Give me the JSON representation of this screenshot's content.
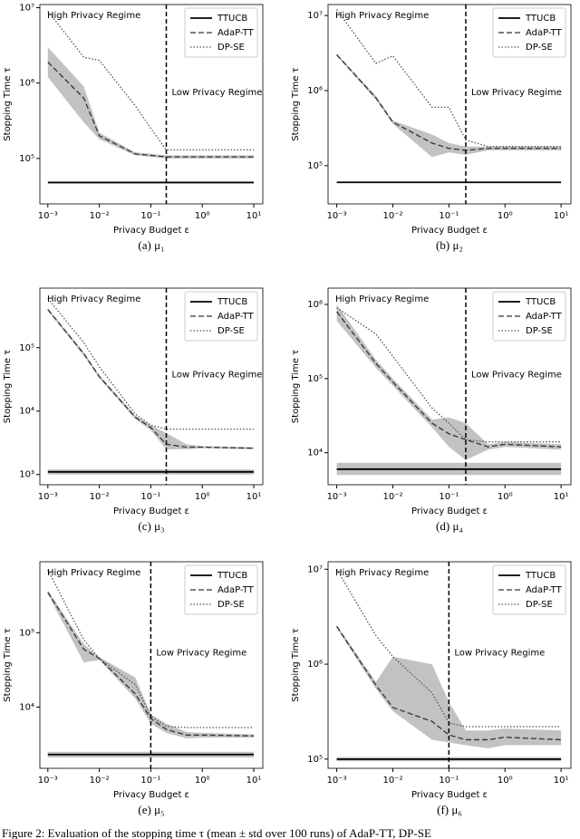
{
  "figure_caption": "Figure 2: Evaluation of the stopping time τ (mean ± std over 100 runs) of AdaP-TT, DP-SE",
  "chart_data": [
    {
      "type": "line",
      "caption": "(a) μ₁",
      "xlabel": "Privacy Budget ε",
      "ylabel": "Stopping Time τ",
      "log_x": true,
      "log_y": true,
      "annotations": [
        "High Privacy Regime",
        "Low Privacy Regime"
      ],
      "threshold": 0.2,
      "legend": "upper right",
      "band_color": "#bbbbbb",
      "x": [
        0.001,
        0.005,
        0.01,
        0.05,
        0.1,
        0.2,
        0.5,
        1,
        10
      ],
      "xlim": [
        0.0007,
        15
      ],
      "xticks": [
        {
          "value": 0.001,
          "label": "10⁻³"
        },
        {
          "value": 0.01,
          "label": "10⁻²"
        },
        {
          "value": 0.1,
          "label": "10⁻¹"
        },
        {
          "value": 1,
          "label": "10⁰"
        },
        {
          "value": 10,
          "label": "10¹"
        }
      ],
      "ylim": [
        25000,
        11000000
      ],
      "yticks": [
        {
          "value": 100000,
          "label": "10⁵"
        },
        {
          "value": 1000000,
          "label": "10⁶"
        },
        {
          "value": 10000000,
          "label": "10⁷"
        }
      ],
      "series": [
        {
          "name": "TTUCB",
          "color": "#000000",
          "linestyle": "solid",
          "values": [
            48000,
            48000,
            48000,
            48000,
            48000,
            48000,
            48000,
            48000,
            48000
          ]
        },
        {
          "name": "AdaP-TT",
          "color": "#333333",
          "linestyle": "dashed",
          "values": [
            1900000,
            630000,
            200000,
            115000,
            110000,
            105000,
            105000,
            105000,
            105000
          ],
          "lower": [
            1200000,
            300000,
            180000,
            110000,
            105000,
            100000,
            100000,
            100000,
            100000
          ],
          "upper": [
            3000000,
            900000,
            220000,
            120000,
            115000,
            110000,
            110000,
            110000,
            110000
          ]
        },
        {
          "name": "DP-SE",
          "color": "#555555",
          "linestyle": "dotted",
          "values": [
            9000000,
            2200000,
            2000000,
            500000,
            250000,
            130000,
            130000,
            130000,
            130000
          ]
        }
      ]
    },
    {
      "type": "line",
      "caption": "(b) μ₂",
      "xlabel": "Privacy Budget ε",
      "ylabel": "Stopping Time τ",
      "log_x": true,
      "log_y": true,
      "annotations": [
        "High Privacy Regime",
        "Low Privacy Regime"
      ],
      "threshold": 0.2,
      "legend": "upper right",
      "band_color": "#bbbbbb",
      "x": [
        0.001,
        0.005,
        0.01,
        0.05,
        0.1,
        0.2,
        0.5,
        1,
        10
      ],
      "xlim": [
        0.0007,
        15
      ],
      "xticks": [
        {
          "value": 0.001,
          "label": "10⁻³"
        },
        {
          "value": 0.01,
          "label": "10⁻²"
        },
        {
          "value": 0.1,
          "label": "10⁻¹"
        },
        {
          "value": 1,
          "label": "10⁰"
        },
        {
          "value": 10,
          "label": "10¹"
        }
      ],
      "ylim": [
        31000,
        14000000
      ],
      "yticks": [
        {
          "value": 100000,
          "label": "10⁵"
        },
        {
          "value": 1000000,
          "label": "10⁶"
        },
        {
          "value": 10000000,
          "label": "10⁷"
        }
      ],
      "series": [
        {
          "name": "TTUCB",
          "color": "#000000",
          "linestyle": "solid",
          "values": [
            60000,
            60000,
            60000,
            60000,
            60000,
            60000,
            60000,
            60000,
            60000
          ]
        },
        {
          "name": "AdaP-TT",
          "color": "#333333",
          "linestyle": "dashed",
          "values": [
            3000000,
            800000,
            380000,
            200000,
            170000,
            160000,
            170000,
            170000,
            170000
          ],
          "lower": [
            2900000,
            750000,
            360000,
            130000,
            150000,
            140000,
            160000,
            160000,
            160000
          ],
          "upper": [
            3100000,
            850000,
            400000,
            260000,
            200000,
            180000,
            180000,
            180000,
            180000
          ]
        },
        {
          "name": "DP-SE",
          "color": "#555555",
          "linestyle": "dotted",
          "values": [
            12000000,
            2300000,
            2900000,
            600000,
            600000,
            220000,
            180000,
            180000,
            180000
          ]
        }
      ]
    },
    {
      "type": "line",
      "caption": "(c) μ₃",
      "xlabel": "Privacy Budget ε",
      "ylabel": "Stopping Time τ",
      "log_x": true,
      "log_y": true,
      "annotations": [
        "High Privacy Regime",
        "Low Privacy Regime"
      ],
      "threshold": 0.2,
      "legend": "upper right",
      "band_color": "#bbbbbb",
      "x": [
        0.001,
        0.005,
        0.01,
        0.05,
        0.1,
        0.2,
        0.5,
        1,
        10
      ],
      "xlim": [
        0.0007,
        15
      ],
      "xticks": [
        {
          "value": 0.001,
          "label": "10⁻³"
        },
        {
          "value": 0.01,
          "label": "10⁻²"
        },
        {
          "value": 0.1,
          "label": "10⁻¹"
        },
        {
          "value": 1,
          "label": "10⁰"
        },
        {
          "value": 10,
          "label": "10¹"
        }
      ],
      "ylim": [
        690,
        870000
      ],
      "yticks": [
        {
          "value": 1000,
          "label": "10³"
        },
        {
          "value": 10000,
          "label": "10⁴"
        },
        {
          "value": 100000,
          "label": "10⁵"
        }
      ],
      "series": [
        {
          "name": "TTUCB",
          "color": "#000000",
          "linestyle": "solid",
          "values": [
            1100,
            1100,
            1100,
            1100,
            1100,
            1100,
            1100,
            1100,
            1100
          ],
          "lower": [
            1000,
            1000,
            1000,
            1000,
            1000,
            1000,
            1000,
            1000,
            1000
          ],
          "upper": [
            1200,
            1200,
            1200,
            1200,
            1200,
            1200,
            1200,
            1200,
            1200
          ]
        },
        {
          "name": "AdaP-TT",
          "color": "#333333",
          "linestyle": "dashed",
          "values": [
            400000,
            80000,
            35000,
            8000,
            5500,
            3000,
            2700,
            2700,
            2600
          ],
          "lower": [
            380000,
            75000,
            33000,
            7500,
            5000,
            2500,
            2500,
            2600,
            2500
          ],
          "upper": [
            420000,
            85000,
            37000,
            8500,
            6000,
            4500,
            3000,
            2800,
            2700
          ]
        },
        {
          "name": "DP-SE",
          "color": "#555555",
          "linestyle": "dotted",
          "values": [
            600000,
            120000,
            50000,
            9000,
            6000,
            5200,
            5200,
            5200,
            5200
          ]
        }
      ]
    },
    {
      "type": "line",
      "caption": "(d) μ₄",
      "xlabel": "Privacy Budget ε",
      "ylabel": "Stopping Time τ",
      "log_x": true,
      "log_y": true,
      "annotations": [
        "High Privacy Regime",
        "Low Privacy Regime"
      ],
      "threshold": 0.2,
      "legend": "upper right",
      "band_color": "#bbbbbb",
      "x": [
        0.001,
        0.005,
        0.01,
        0.05,
        0.1,
        0.2,
        0.5,
        1,
        10
      ],
      "xlim": [
        0.0007,
        15
      ],
      "xticks": [
        {
          "value": 0.001,
          "label": "10⁻³"
        },
        {
          "value": 0.01,
          "label": "10⁻²"
        },
        {
          "value": 0.1,
          "label": "10⁻¹"
        },
        {
          "value": 1,
          "label": "10⁰"
        },
        {
          "value": 10,
          "label": "10¹"
        }
      ],
      "ylim": [
        3700,
        1660000
      ],
      "yticks": [
        {
          "value": 10000,
          "label": "10⁴"
        },
        {
          "value": 100000,
          "label": "10⁵"
        },
        {
          "value": 1000000,
          "label": "10⁶"
        }
      ],
      "series": [
        {
          "name": "TTUCB",
          "color": "#000000",
          "linestyle": "solid",
          "values": [
            6000,
            6000,
            6000,
            6000,
            6000,
            6000,
            6000,
            6000,
            6000
          ],
          "lower": [
            5000,
            5000,
            5000,
            5000,
            5000,
            5000,
            5000,
            5000,
            5000
          ],
          "upper": [
            7300,
            7300,
            7300,
            7300,
            7300,
            7300,
            7300,
            7300,
            7300
          ]
        },
        {
          "name": "AdaP-TT",
          "color": "#333333",
          "linestyle": "dashed",
          "values": [
            800000,
            160000,
            90000,
            25000,
            18000,
            15000,
            12000,
            13000,
            12000
          ],
          "lower": [
            600000,
            140000,
            80000,
            22000,
            12000,
            8000,
            11000,
            12000,
            11000
          ],
          "upper": [
            1000000,
            180000,
            100000,
            28000,
            30000,
            25000,
            13000,
            14000,
            13000
          ]
        },
        {
          "name": "DP-SE",
          "color": "#555555",
          "linestyle": "dotted",
          "values": [
            900000,
            400000,
            200000,
            40000,
            25000,
            15000,
            14000,
            14000,
            14000
          ]
        }
      ]
    },
    {
      "type": "line",
      "caption": "(e) μ₅",
      "xlabel": "Privacy Budget ε",
      "ylabel": "Stopping Time τ",
      "log_x": true,
      "log_y": true,
      "annotations": [
        "High Privacy Regime",
        "Low Privacy Regime"
      ],
      "threshold": 0.1,
      "legend": "upper right",
      "band_color": "#bbbbbb",
      "x": [
        0.001,
        0.005,
        0.01,
        0.05,
        0.1,
        0.2,
        0.5,
        1,
        10
      ],
      "xlim": [
        0.0007,
        15
      ],
      "xticks": [
        {
          "value": 0.001,
          "label": "10⁻³"
        },
        {
          "value": 0.01,
          "label": "10⁻²"
        },
        {
          "value": 0.1,
          "label": "10⁻¹"
        },
        {
          "value": 1,
          "label": "10⁰"
        },
        {
          "value": 10,
          "label": "10¹"
        }
      ],
      "ylim": [
        1500,
        900000
      ],
      "yticks": [
        {
          "value": 10000,
          "label": "10⁴"
        },
        {
          "value": 100000,
          "label": "10⁵"
        }
      ],
      "series": [
        {
          "name": "TTUCB",
          "color": "#000000",
          "linestyle": "solid",
          "values": [
            2300,
            2300,
            2300,
            2300,
            2300,
            2300,
            2300,
            2300,
            2300
          ],
          "lower": [
            2100,
            2100,
            2100,
            2100,
            2100,
            2100,
            2100,
            2100,
            2100
          ],
          "upper": [
            2500,
            2500,
            2500,
            2500,
            2500,
            2500,
            2500,
            2500,
            2500
          ]
        },
        {
          "name": "AdaP-TT",
          "color": "#333333",
          "linestyle": "dashed",
          "values": [
            350000,
            60000,
            45000,
            15000,
            7000,
            5000,
            4200,
            4200,
            4100
          ],
          "lower": [
            330000,
            40000,
            43000,
            13000,
            6000,
            4500,
            3800,
            3900,
            3900
          ],
          "upper": [
            370000,
            70000,
            47000,
            25000,
            8000,
            6000,
            4600,
            4500,
            4300
          ]
        },
        {
          "name": "DP-SE",
          "color": "#555555",
          "linestyle": "dotted",
          "values": [
            700000,
            80000,
            45000,
            20000,
            7500,
            5500,
            5300,
            5300,
            5300
          ]
        }
      ]
    },
    {
      "type": "line",
      "caption": "(f) μ₆",
      "xlabel": "Privacy Budget ε",
      "ylabel": "Stopping Time τ",
      "log_x": true,
      "log_y": true,
      "annotations": [
        "High Privacy Regime",
        "Low Privacy Regime"
      ],
      "threshold": 0.1,
      "legend": "upper right",
      "band_color": "#bbbbbb",
      "x": [
        0.001,
        0.005,
        0.01,
        0.05,
        0.1,
        0.2,
        0.5,
        1,
        10
      ],
      "xlim": [
        0.0007,
        15
      ],
      "xticks": [
        {
          "value": 0.001,
          "label": "10⁻³"
        },
        {
          "value": 0.01,
          "label": "10⁻²"
        },
        {
          "value": 0.1,
          "label": "10⁻¹"
        },
        {
          "value": 1,
          "label": "10⁰"
        },
        {
          "value": 10,
          "label": "10¹"
        }
      ],
      "ylim": [
        80000,
        12000000
      ],
      "yticks": [
        {
          "value": 100000,
          "label": "10⁵"
        },
        {
          "value": 1000000,
          "label": "10⁶"
        },
        {
          "value": 10000000,
          "label": "10⁷"
        }
      ],
      "series": [
        {
          "name": "TTUCB",
          "color": "#000000",
          "linestyle": "solid",
          "values": [
            100000,
            100000,
            100000,
            100000,
            100000,
            100000,
            100000,
            100000,
            100000
          ],
          "lower": [
            95000,
            95000,
            95000,
            95000,
            95000,
            95000,
            95000,
            95000,
            95000
          ],
          "upper": [
            105000,
            105000,
            105000,
            105000,
            105000,
            105000,
            105000,
            105000,
            105000
          ]
        },
        {
          "name": "AdaP-TT",
          "color": "#333333",
          "linestyle": "dashed",
          "values": [
            2500000,
            600000,
            350000,
            250000,
            180000,
            160000,
            160000,
            170000,
            160000
          ],
          "lower": [
            2400000,
            550000,
            320000,
            160000,
            150000,
            140000,
            130000,
            140000,
            140000
          ],
          "upper": [
            2600000,
            650000,
            1200000,
            1000000,
            400000,
            200000,
            200000,
            210000,
            200000
          ]
        },
        {
          "name": "DP-SE",
          "color": "#555555",
          "linestyle": "dotted",
          "values": [
            10000000,
            2000000,
            1200000,
            500000,
            240000,
            220000,
            220000,
            220000,
            220000
          ]
        }
      ]
    }
  ]
}
